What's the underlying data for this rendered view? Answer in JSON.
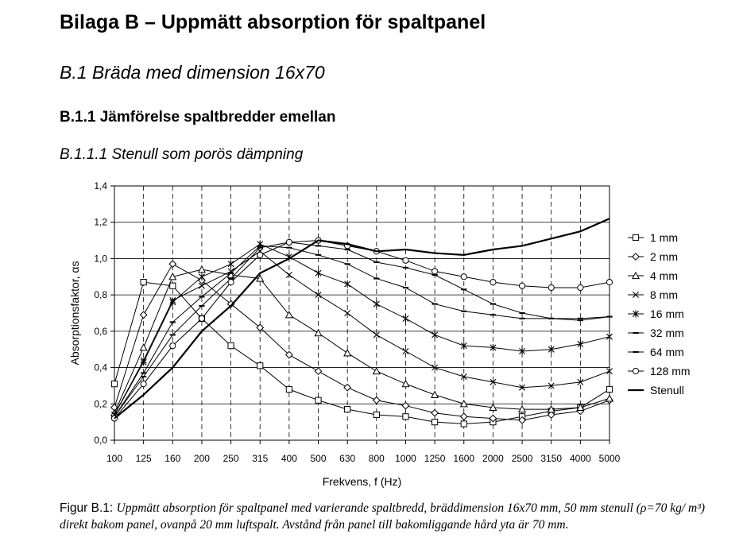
{
  "headings": {
    "h1": "Bilaga B – Uppmätt absorption för spaltpanel",
    "h2": "B.1 Bräda med dimension 16x70",
    "h3": "B.1.1 Jämförelse spaltbredder emellan",
    "h4": "B.1.1.1 Stenull som porös dämpning"
  },
  "caption": {
    "label": "Figur B.1:",
    "text": "Uppmätt absorption för spaltpanel med varierande spaltbredd, bräddimension 16x70 mm, 50 mm stenull (ρ=70 kg/ m³) direkt bakom panel, ovanpå 20 mm luftspalt. Avstånd från panel till bakomliggande hård yta är 70 mm."
  },
  "chart_data": {
    "type": "line",
    "title": "",
    "xlabel": "Frekvens, f (Hz)",
    "ylabel": "Absorptionsfaktor, αs",
    "categories": [
      "100",
      "125",
      "160",
      "200",
      "250",
      "315",
      "400",
      "500",
      "630",
      "800",
      "1000",
      "1250",
      "1600",
      "2000",
      "2500",
      "3150",
      "4000",
      "5000"
    ],
    "yticks": [
      "0,0",
      "0,2",
      "0,4",
      "0,6",
      "0,8",
      "1,0",
      "1,2",
      "1,4"
    ],
    "ylim": [
      0,
      1.4
    ],
    "grid": "horizontal solid, vertical dashed",
    "legend_position": "right",
    "series": [
      {
        "name": "1 mm",
        "marker": "square",
        "values": [
          0.31,
          0.87,
          0.85,
          0.67,
          0.52,
          0.41,
          0.28,
          0.22,
          0.17,
          0.14,
          0.13,
          0.1,
          0.09,
          0.1,
          0.13,
          0.16,
          0.18,
          0.28
        ]
      },
      {
        "name": "2 mm",
        "marker": "diamond",
        "values": [
          0.18,
          0.69,
          0.97,
          0.88,
          0.75,
          0.62,
          0.47,
          0.38,
          0.29,
          0.22,
          0.19,
          0.15,
          0.13,
          0.12,
          0.11,
          0.14,
          0.16,
          0.22
        ]
      },
      {
        "name": "4 mm",
        "marker": "triangle",
        "values": [
          0.15,
          0.51,
          0.9,
          0.94,
          0.91,
          0.89,
          0.69,
          0.59,
          0.48,
          0.38,
          0.31,
          0.25,
          0.2,
          0.18,
          0.17,
          0.17,
          0.18,
          0.23
        ]
      },
      {
        "name": "8 mm",
        "marker": "x",
        "values": [
          0.14,
          0.44,
          0.77,
          0.85,
          0.93,
          1.04,
          0.91,
          0.8,
          0.7,
          0.58,
          0.49,
          0.4,
          0.35,
          0.32,
          0.29,
          0.3,
          0.32,
          0.38
        ]
      },
      {
        "name": "16 mm",
        "marker": "star",
        "values": [
          0.14,
          0.43,
          0.76,
          0.9,
          0.97,
          1.08,
          1.01,
          0.92,
          0.86,
          0.75,
          0.67,
          0.58,
          0.52,
          0.51,
          0.49,
          0.5,
          0.53,
          0.57
        ]
      },
      {
        "name": "32 mm",
        "marker": "dash",
        "values": [
          0.13,
          0.37,
          0.65,
          0.79,
          0.92,
          1.07,
          1.06,
          1.02,
          0.97,
          0.89,
          0.84,
          0.75,
          0.71,
          0.69,
          0.67,
          0.67,
          0.66,
          0.68
        ]
      },
      {
        "name": "64 mm",
        "marker": "dash",
        "values": [
          0.13,
          0.35,
          0.58,
          0.74,
          0.89,
          1.06,
          1.09,
          1.07,
          1.05,
          0.98,
          0.95,
          0.91,
          0.83,
          0.75,
          0.7,
          0.67,
          0.67,
          0.68
        ]
      },
      {
        "name": "128 mm",
        "marker": "circle",
        "values": [
          0.12,
          0.31,
          0.52,
          0.67,
          0.87,
          1.02,
          1.09,
          1.1,
          1.07,
          1.04,
          0.99,
          0.93,
          0.9,
          0.87,
          0.85,
          0.84,
          0.84,
          0.87
        ]
      },
      {
        "name": "Stenull",
        "marker": "none",
        "bold": true,
        "values": [
          0.12,
          0.25,
          0.4,
          0.6,
          0.74,
          0.92,
          1.0,
          1.1,
          1.08,
          1.04,
          1.05,
          1.03,
          1.02,
          1.05,
          1.07,
          1.11,
          1.15,
          1.22
        ]
      }
    ]
  }
}
